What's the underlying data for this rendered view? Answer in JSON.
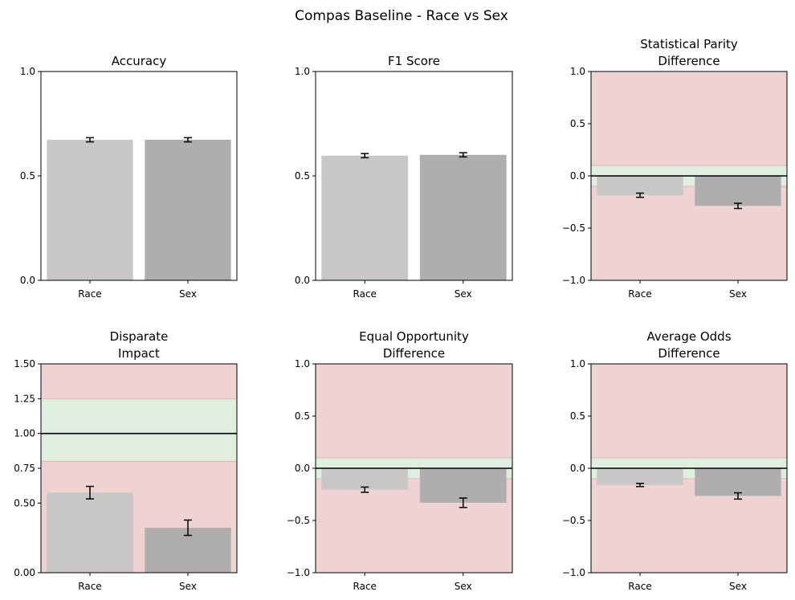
{
  "figure": {
    "title": "Compas Baseline - Race vs Sex"
  },
  "colors": {
    "bar_race": "#c8c7c5",
    "bar_sex": "#afadad",
    "fair_band": "#dfeedf",
    "unfair_band": "#efd3d3",
    "band_edge": "#d8b8b0",
    "ideal_line": "#000000"
  },
  "chart_data": [
    {
      "type": "bar",
      "title": "Accuracy",
      "categories": [
        "Race",
        "Sex"
      ],
      "values": [
        0.673,
        0.673
      ],
      "errors": [
        0.01,
        0.01
      ],
      "ylim": [
        0,
        1
      ],
      "yticks": [
        "0.0",
        "0.5",
        "1.0"
      ],
      "ytick_values": [
        0,
        0.5,
        1.0
      ]
    },
    {
      "type": "bar",
      "title": "F1 Score",
      "categories": [
        "Race",
        "Sex"
      ],
      "values": [
        0.597,
        0.601
      ],
      "errors": [
        0.01,
        0.01
      ],
      "ylim": [
        0,
        1
      ],
      "yticks": [
        "0.0",
        "0.5",
        "1.0"
      ],
      "ytick_values": [
        0,
        0.5,
        1.0
      ]
    },
    {
      "type": "bar",
      "title": "Statistical Parity\nDifference",
      "categories": [
        "Race",
        "Sex"
      ],
      "values": [
        -0.185,
        -0.287
      ],
      "errors": [
        0.02,
        0.025
      ],
      "ylim": [
        -1,
        1
      ],
      "yticks": [
        "−1.0",
        "−0.5",
        "0.0",
        "0.5",
        "1.0"
      ],
      "ytick_values": [
        -1,
        -0.5,
        0,
        0.5,
        1
      ],
      "fair_range": [
        -0.1,
        0.1
      ],
      "ideal": 0
    },
    {
      "type": "bar",
      "title": "Disparate\nImpact",
      "categories": [
        "Race",
        "Sex"
      ],
      "values": [
        0.575,
        0.323
      ],
      "errors": [
        0.045,
        0.055
      ],
      "ylim": [
        0,
        1.5
      ],
      "yticks": [
        "0.00",
        "0.50",
        "0.75",
        "1.00",
        "1.25",
        "1.50"
      ],
      "ytick_values": [
        0,
        0.5,
        0.75,
        1.0,
        1.25,
        1.5
      ],
      "fair_range": [
        0.8,
        1.25
      ],
      "ideal": 1.0
    },
    {
      "type": "bar",
      "title": "Equal Opportunity\nDifference",
      "categories": [
        "Race",
        "Sex"
      ],
      "values": [
        -0.205,
        -0.33
      ],
      "errors": [
        0.025,
        0.045
      ],
      "ylim": [
        -1,
        1
      ],
      "yticks": [
        "−1.0",
        "−0.5",
        "0.0",
        "0.5",
        "1.0"
      ],
      "ytick_values": [
        -1,
        -0.5,
        0,
        0.5,
        1
      ],
      "fair_range": [
        -0.1,
        0.1
      ],
      "ideal": 0
    },
    {
      "type": "bar",
      "title": "Average Odds\nDifference",
      "categories": [
        "Race",
        "Sex"
      ],
      "values": [
        -0.16,
        -0.265
      ],
      "errors": [
        0.015,
        0.03
      ],
      "ylim": [
        -1,
        1
      ],
      "yticks": [
        "−1.0",
        "−0.5",
        "0.0",
        "0.5",
        "1.0"
      ],
      "ytick_values": [
        -1,
        -0.5,
        0,
        0.5,
        1
      ],
      "fair_range": [
        -0.1,
        0.1
      ],
      "ideal": 0
    }
  ]
}
